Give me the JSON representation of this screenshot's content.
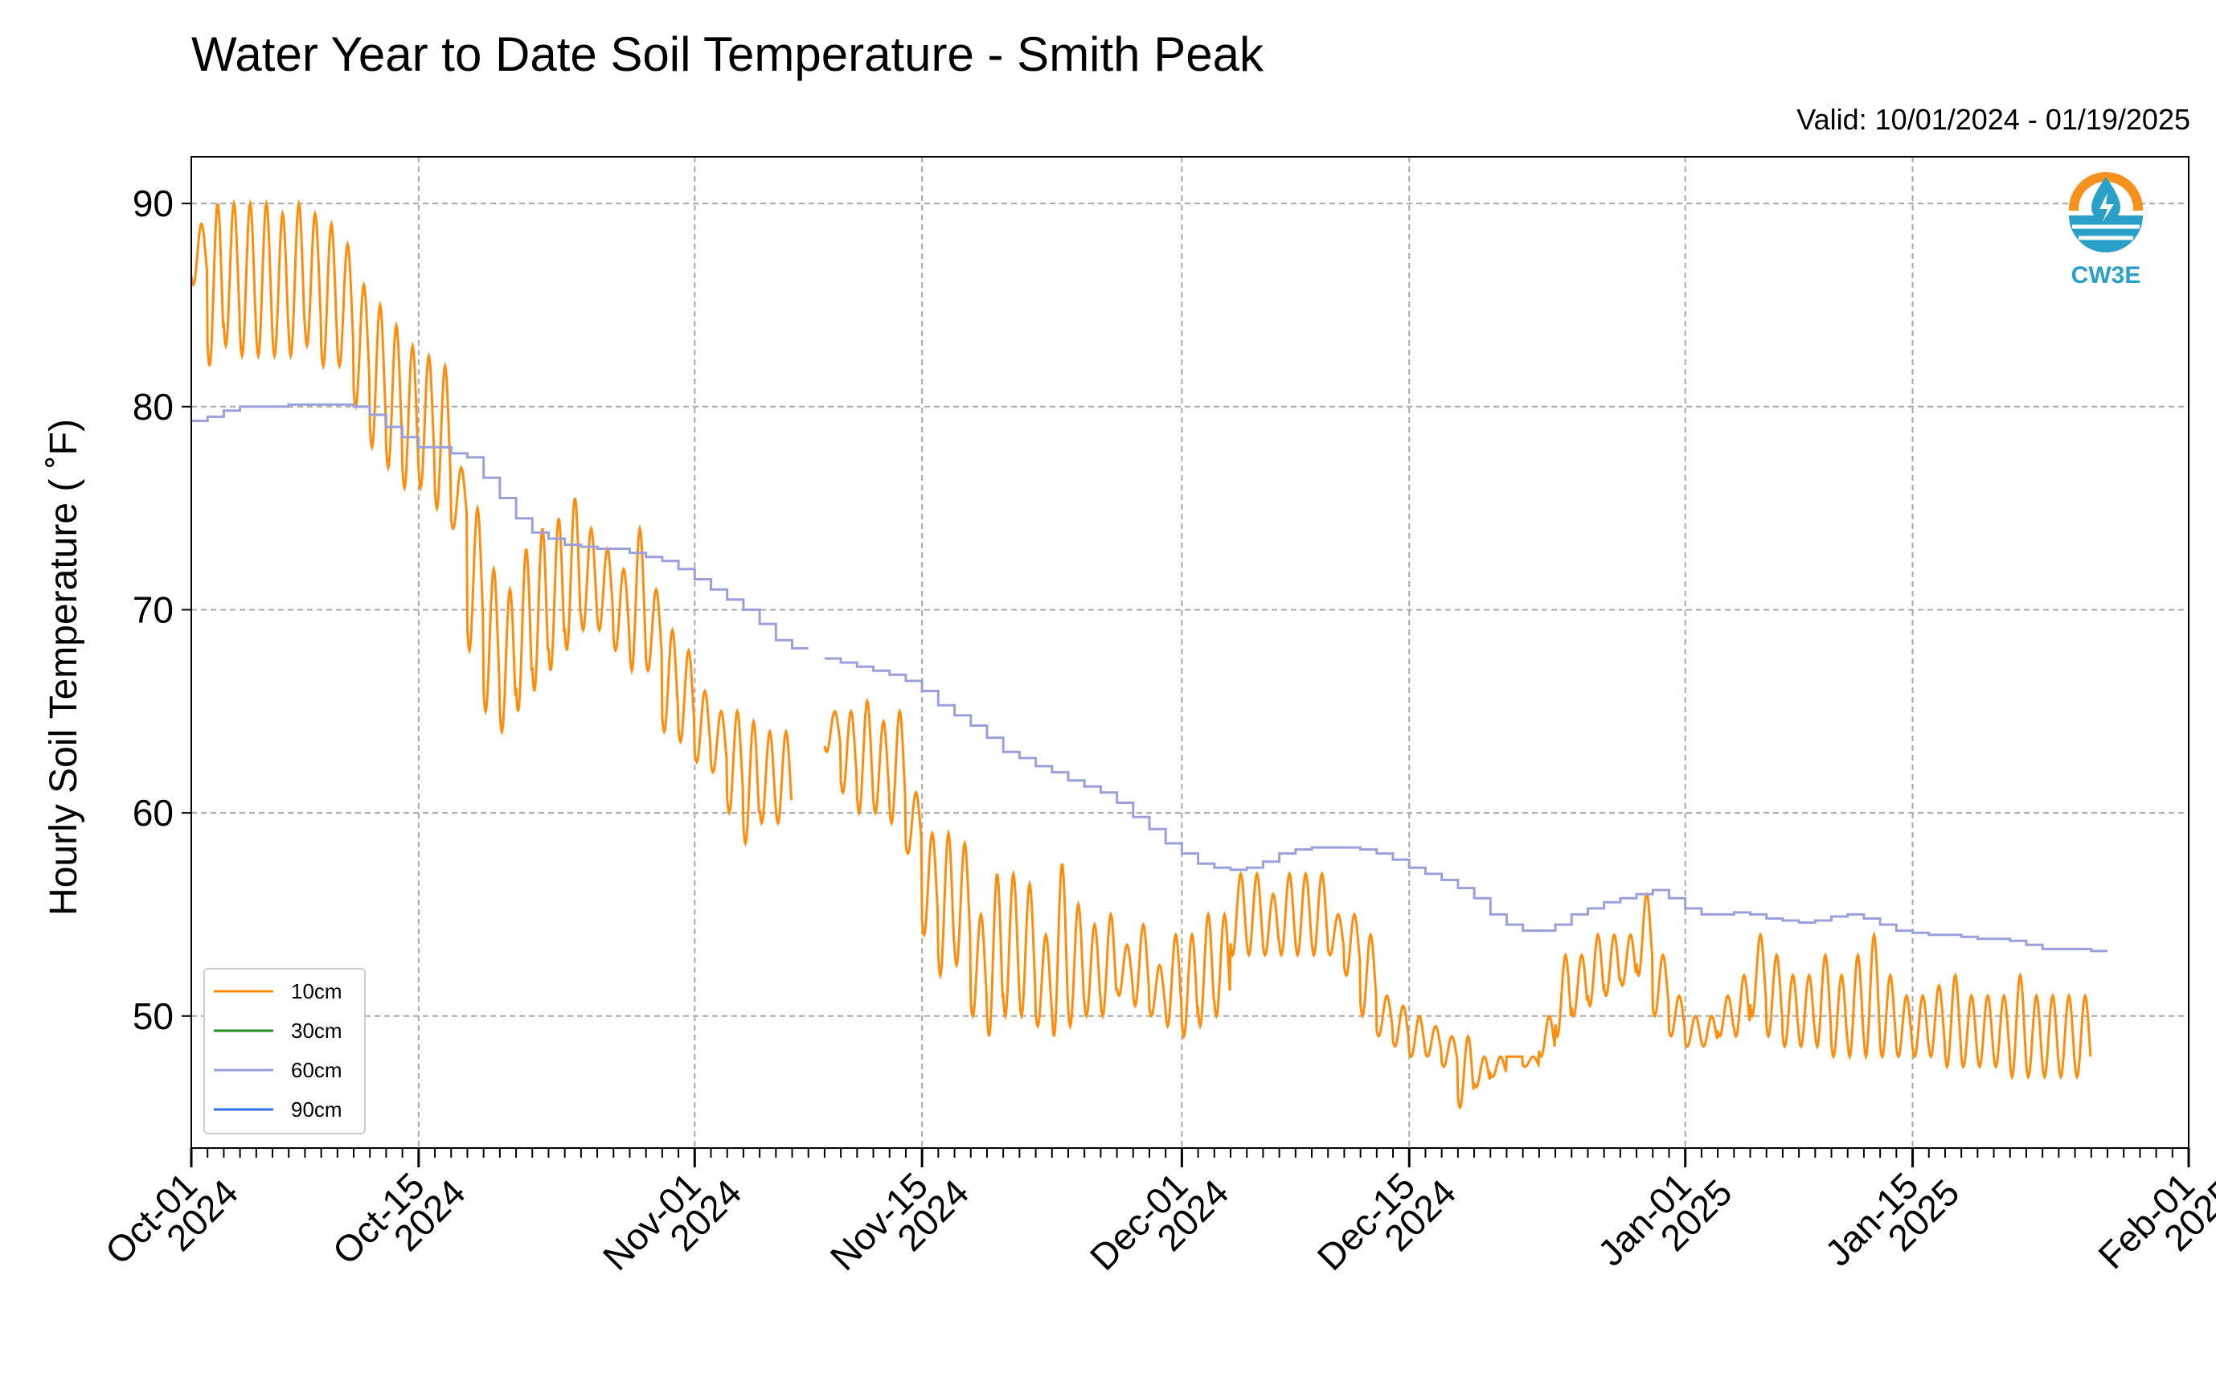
{
  "colors": {
    "10cm": "#ff8c0a",
    "30cm": "#228b22",
    "60cm": "#9aa0dc",
    "90cm": "#2f6fe0",
    "grid": "#a8a8a8",
    "logo_orange": "#f5921e",
    "logo_blue": "#2aa0c8"
  },
  "logo": {
    "text": "CW3E",
    "icon": "water-drop-logo-icon"
  },
  "chart_data": {
    "type": "line",
    "title": "Water Year to Date Soil Temperature - Smith Peak",
    "subtitle": "Valid: 10/01/2024 - 01/19/2025",
    "xlabel": "",
    "ylabel": "Hourly Soil Temperature ( ˚F)",
    "xlim": [
      "2024-10-01",
      "2025-02-01"
    ],
    "ylim": [
      43.5,
      92.3
    ],
    "grid": true,
    "legend_position": "lower-left",
    "yticks": [
      50,
      60,
      70,
      80,
      90
    ],
    "xticks": [
      {
        "date": "2024-10-01",
        "line1": "Oct-01",
        "line2": "2024"
      },
      {
        "date": "2024-10-15",
        "line1": "Oct-15",
        "line2": "2024"
      },
      {
        "date": "2024-11-01",
        "line1": "Nov-01",
        "line2": "2024"
      },
      {
        "date": "2024-11-15",
        "line1": "Nov-15",
        "line2": "2024"
      },
      {
        "date": "2024-12-01",
        "line1": "Dec-01",
        "line2": "2024"
      },
      {
        "date": "2024-12-15",
        "line1": "Dec-15",
        "line2": "2024"
      },
      {
        "date": "2025-01-01",
        "line1": "Jan-01",
        "line2": "2025"
      },
      {
        "date": "2025-01-15",
        "line1": "Jan-15",
        "line2": "2025"
      },
      {
        "date": "2025-02-01",
        "line1": "Feb-01",
        "line2": "2025"
      }
    ],
    "series": [
      {
        "name": "10cm",
        "note": "daily maximum/minimum envelope of the hourly series",
        "segments": [
          {
            "start": "2024-10-01",
            "daily_max": [
              89,
              90,
              90,
              90,
              90,
              89.5,
              90,
              89.5,
              89,
              88,
              86,
              85,
              84,
              83,
              82.5,
              82,
              77,
              75,
              72,
              71,
              73,
              74,
              74.5,
              75.5,
              74,
              73,
              72,
              74,
              71,
              69,
              68,
              66,
              65,
              65,
              64.5,
              64,
              64
            ],
            "daily_min": [
              86,
              82,
              83,
              82.5,
              82.5,
              82.5,
              82.5,
              83,
              82,
              82,
              80,
              78,
              77,
              76,
              76,
              75,
              74,
              68,
              65,
              64,
              65,
              66,
              67,
              68,
              69,
              69,
              68,
              67,
              67,
              64,
              63.5,
              62.5,
              62,
              60,
              58.5,
              59.5,
              59.5
            ]
          },
          {
            "start": "2024-11-09",
            "daily_max": [
              65,
              65,
              65.5,
              64.5,
              65,
              61,
              59,
              59,
              58.5,
              55,
              57,
              57,
              56.5,
              54,
              57.5,
              55.5,
              54.5,
              55,
              53.5,
              54.5,
              52.5,
              54,
              54,
              55,
              55,
              57,
              57,
              56,
              57,
              57,
              57,
              55,
              55,
              54,
              51,
              50.5,
              50,
              49.5,
              49,
              49,
              48,
              48,
              48,
              48,
              50,
              53,
              53,
              54,
              54,
              54,
              56,
              53,
              51,
              50,
              50,
              51,
              52,
              54,
              53,
              52,
              52,
              53,
              52,
              53,
              54,
              52,
              51,
              51,
              51.5,
              52,
              51,
              51,
              51,
              52,
              51,
              51,
              51,
              51
            ],
            "daily_min": [
              63,
              61,
              60,
              60,
              59.5,
              58,
              54,
              52,
              52.5,
              50,
              49,
              50,
              50,
              49.5,
              49,
              49.5,
              50,
              50,
              51,
              50.5,
              50,
              49.5,
              49,
              49.5,
              50,
              53,
              53,
              53,
              53,
              53,
              53,
              53,
              52,
              50,
              49,
              48.5,
              48,
              48,
              47.5,
              45.5,
              46.5,
              47,
              48,
              47.5,
              48,
              49,
              50,
              50.5,
              51,
              51.5,
              52,
              50,
              49,
              48.5,
              48.5,
              49,
              49,
              50,
              49,
              48.5,
              48.5,
              48.5,
              48,
              48,
              48,
              48,
              48,
              48,
              48,
              47.5,
              47.5,
              47.5,
              47.5,
              47,
              47,
              47,
              47,
              47
            ]
          }
        ]
      },
      {
        "name": "30cm",
        "note": "legend entry only; no data plotted",
        "segments": []
      },
      {
        "name": "60cm",
        "segments": [
          {
            "start": "2024-10-01",
            "step": 1,
            "values": [
              79.3,
              79.5,
              79.8,
              80,
              80,
              80,
              80.1,
              80.1,
              80.1,
              80.1,
              80,
              79.6,
              79,
              78.5,
              78,
              78,
              77.7,
              77.5,
              76.5,
              75.5,
              74.5,
              73.8,
              73.5,
              73.2,
              73.1,
              73,
              73,
              72.8,
              72.6,
              72.4,
              72,
              71.5,
              71,
              70.5,
              70,
              69.3,
              68.5,
              68.1
            ]
          },
          {
            "start": "2024-11-09",
            "step": 1,
            "values": [
              67.6,
              67.4,
              67.2,
              67,
              66.8,
              66.5,
              66,
              65.3,
              64.8,
              64.3,
              63.7,
              63,
              62.7,
              62.3,
              62,
              61.6,
              61.3,
              61,
              60.5,
              59.8,
              59.2,
              58.5,
              58,
              57.5,
              57.3,
              57.2,
              57.3,
              57.6,
              58,
              58.2,
              58.3,
              58.3,
              58.3,
              58.2,
              58,
              57.7,
              57.3,
              57,
              56.7,
              56.3,
              55.8,
              55,
              54.5,
              54.2,
              54.2,
              54.5,
              55,
              55.3,
              55.6,
              55.8,
              56,
              56.2,
              55.8,
              55.3,
              55,
              55,
              55.1,
              55,
              54.8,
              54.7,
              54.6,
              54.7,
              54.9,
              55,
              54.8,
              54.5,
              54.2,
              54.1,
              54,
              54,
              53.9,
              53.8,
              53.8,
              53.7,
              53.5,
              53.3,
              53.3,
              53.3,
              53.2
            ]
          }
        ]
      },
      {
        "name": "90cm",
        "note": "legend entry only; no data plotted",
        "segments": []
      }
    ]
  }
}
